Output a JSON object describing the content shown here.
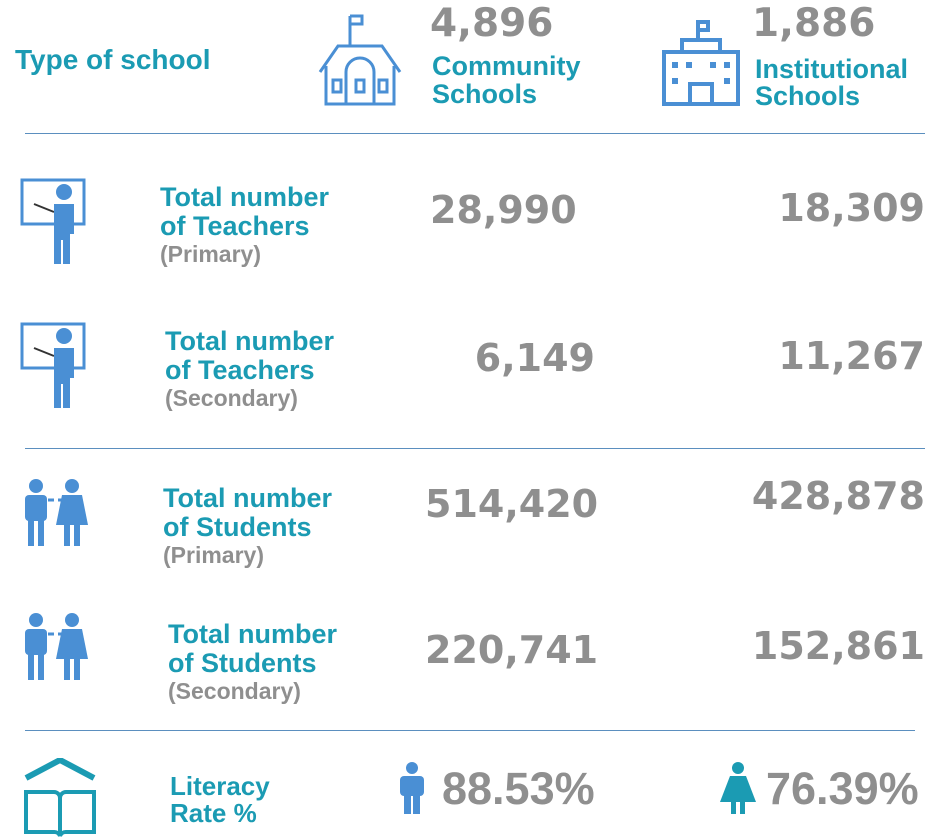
{
  "header": {
    "title": "Type of school",
    "columns": [
      {
        "count": "4,896",
        "label": [
          "Community",
          "Schools"
        ]
      },
      {
        "count": "1,886",
        "label": [
          "Institutional",
          "Schools"
        ]
      }
    ]
  },
  "rows": [
    {
      "label": [
        "Total number",
        "of Teachers"
      ],
      "level": "(Primary)",
      "values": [
        "28,990",
        "18,309"
      ]
    },
    {
      "label": [
        "Total number",
        "of Teachers"
      ],
      "level": "(Secondary)",
      "values": [
        "6,149",
        "11,267"
      ]
    },
    {
      "label": [
        "Total number",
        "of Students"
      ],
      "level": "(Primary)",
      "values": [
        "514,420",
        "428,878"
      ]
    },
    {
      "label": [
        "Total number",
        "of Students"
      ],
      "level": "(Secondary)",
      "values": [
        "220,741",
        "152,861"
      ]
    }
  ],
  "literacy": {
    "label": [
      "Literacy",
      "Rate %"
    ],
    "values": [
      "88.53%",
      "76.39%"
    ]
  }
}
